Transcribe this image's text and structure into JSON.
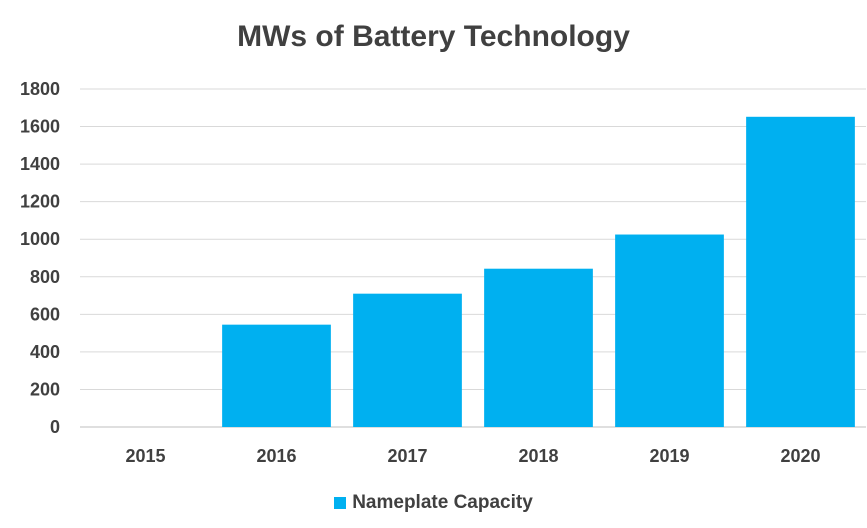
{
  "chart_data": {
    "type": "bar",
    "title": "MWs of Battery Technology",
    "categories": [
      "2015",
      "2016",
      "2017",
      "2018",
      "2019",
      "2020"
    ],
    "series": [
      {
        "name": "Nameplate Capacity",
        "values": [
          0,
          545,
          710,
          843,
          1025,
          1652
        ],
        "color": "#00B0F0"
      }
    ],
    "ylim": [
      0,
      1800
    ],
    "yticks": [
      0,
      200,
      400,
      600,
      800,
      1000,
      1200,
      1400,
      1600,
      1800
    ],
    "xlabel": "",
    "ylabel": "",
    "grid": true,
    "legend_position": "bottom"
  }
}
